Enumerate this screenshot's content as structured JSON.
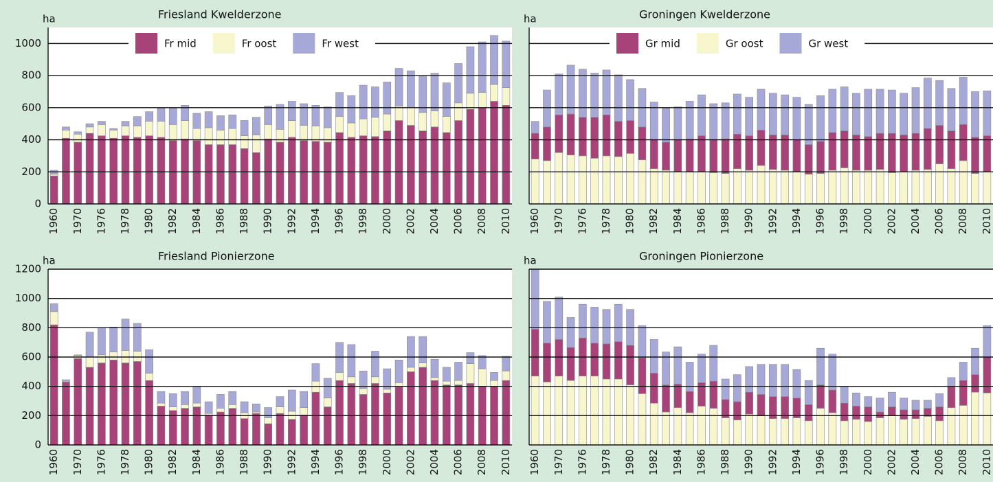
{
  "chart_data": [
    {
      "type": "bar",
      "stacked": true,
      "title": "Friesland Kwelderzone",
      "ylabel": "ha",
      "categories": [
        1960,
        null,
        1970,
        null,
        1976,
        null,
        1978,
        null,
        1980,
        null,
        1982,
        null,
        1984,
        null,
        1986,
        null,
        1988,
        null,
        1990,
        null,
        1992,
        null,
        1994,
        null,
        1996,
        null,
        1998,
        null,
        2000,
        null,
        2002,
        null,
        2004,
        null,
        2006,
        null,
        2008,
        null,
        2010
      ],
      "series": [
        {
          "name": "Fr mid",
          "color": "#a8437a",
          "values": [
            175,
            410,
            385,
            440,
            425,
            410,
            425,
            415,
            425,
            415,
            395,
            405,
            395,
            370,
            370,
            370,
            345,
            320,
            405,
            385,
            415,
            395,
            390,
            385,
            445,
            415,
            425,
            420,
            455,
            520,
            490,
            455,
            480,
            445,
            520,
            590,
            600,
            640,
            615
          ]
        },
        {
          "name": "Fr oost",
          "color": "#f8f6cc",
          "values": [
            10,
            50,
            50,
            40,
            70,
            50,
            60,
            70,
            90,
            100,
            100,
            115,
            75,
            105,
            90,
            100,
            80,
            110,
            90,
            80,
            105,
            95,
            95,
            90,
            100,
            90,
            105,
            120,
            105,
            90,
            110,
            115,
            100,
            100,
            110,
            100,
            95,
            105,
            110
          ]
        },
        {
          "name": "Fr west",
          "color": "#a6a8d8",
          "values": [
            25,
            20,
            15,
            20,
            20,
            10,
            30,
            60,
            60,
            80,
            100,
            95,
            95,
            100,
            90,
            85,
            95,
            110,
            115,
            155,
            120,
            135,
            130,
            130,
            150,
            170,
            210,
            190,
            200,
            235,
            230,
            230,
            235,
            210,
            245,
            290,
            315,
            305,
            290
          ]
        }
      ],
      "ylim": [
        0,
        1100
      ],
      "yticks": [
        0,
        200,
        400,
        600,
        800,
        1000
      ],
      "grid": true,
      "legend": "top"
    },
    {
      "type": "bar",
      "stacked": true,
      "title": "Groningen Kwelderzone",
      "ylabel": "ha",
      "categories": [
        1960,
        null,
        1970,
        null,
        1976,
        null,
        1978,
        null,
        1980,
        null,
        1982,
        null,
        1984,
        null,
        1986,
        null,
        1988,
        null,
        1990,
        null,
        1992,
        null,
        1994,
        null,
        1996,
        null,
        1998,
        null,
        2000,
        null,
        2002,
        null,
        2004,
        null,
        2006,
        null,
        2008,
        null,
        2010
      ],
      "series": [
        {
          "name": "Gr mid",
          "color": "#a8437a",
          "values": [
            160,
            210,
            235,
            255,
            240,
            255,
            255,
            220,
            205,
            205,
            180,
            175,
            200,
            205,
            225,
            205,
            215,
            215,
            215,
            220,
            215,
            220,
            200,
            185,
            200,
            235,
            230,
            220,
            210,
            225,
            245,
            230,
            230,
            255,
            240,
            235,
            225,
            225,
            225
          ]
        },
        {
          "name": "Gr oost",
          "color": "#f8f6cc",
          "values": [
            280,
            270,
            320,
            305,
            300,
            285,
            300,
            295,
            315,
            275,
            220,
            210,
            200,
            200,
            200,
            195,
            190,
            220,
            210,
            240,
            215,
            210,
            200,
            185,
            190,
            210,
            225,
            210,
            210,
            215,
            195,
            200,
            210,
            215,
            250,
            220,
            270,
            190,
            200
          ]
        },
        {
          "name": "Gr west",
          "color": "#a6a8d8",
          "values": [
            75,
            230,
            255,
            305,
            300,
            275,
            280,
            290,
            255,
            240,
            235,
            210,
            205,
            235,
            255,
            225,
            225,
            250,
            240,
            255,
            260,
            250,
            265,
            250,
            285,
            270,
            275,
            260,
            295,
            275,
            270,
            260,
            285,
            315,
            280,
            265,
            295,
            285,
            280
          ]
        }
      ],
      "stack_order": [
        1,
        0,
        2
      ],
      "ylim": [
        0,
        1100
      ],
      "yticks": [
        0,
        200,
        400,
        600,
        800,
        1000
      ],
      "grid": true,
      "legend": "top"
    },
    {
      "type": "bar",
      "stacked": true,
      "title": "Friesland Pionierzone",
      "ylabel": "ha",
      "categories": [
        1960,
        null,
        1970,
        null,
        1976,
        null,
        1978,
        null,
        1980,
        null,
        1982,
        null,
        1984,
        null,
        1986,
        null,
        1988,
        null,
        1990,
        null,
        1992,
        null,
        1994,
        null,
        1996,
        null,
        1998,
        null,
        2000,
        null,
        2002,
        null,
        2004,
        null,
        2006,
        null,
        2008,
        null,
        2010
      ],
      "series": [
        {
          "color": "#a8437a",
          "values": [
            820,
            430,
            590,
            530,
            560,
            580,
            560,
            570,
            440,
            265,
            235,
            250,
            260,
            205,
            225,
            250,
            180,
            215,
            145,
            215,
            175,
            205,
            360,
            260,
            440,
            420,
            345,
            420,
            355,
            395,
            500,
            530,
            440,
            410,
            410,
            420,
            400,
            400,
            440
          ]
        },
        {
          "color": "#f8f6cc",
          "values": [
            90,
            5,
            20,
            70,
            55,
            55,
            85,
            70,
            50,
            20,
            25,
            25,
            25,
            10,
            25,
            25,
            40,
            10,
            40,
            45,
            55,
            50,
            75,
            60,
            55,
            45,
            40,
            45,
            25,
            30,
            30,
            30,
            20,
            25,
            30,
            135,
            120,
            40,
            65
          ]
        },
        {
          "color": "#a6a8d8",
          "values": [
            55,
            10,
            5,
            170,
            185,
            170,
            215,
            190,
            160,
            80,
            90,
            90,
            115,
            80,
            95,
            90,
            75,
            55,
            70,
            70,
            145,
            110,
            120,
            135,
            205,
            220,
            120,
            175,
            140,
            155,
            210,
            180,
            125,
            95,
            125,
            75,
            90,
            55,
            100
          ]
        }
      ],
      "ylim": [
        0,
        1200
      ],
      "yticks": [
        0,
        200,
        400,
        600,
        800,
        1000,
        1200
      ],
      "grid": true
    },
    {
      "type": "bar",
      "stacked": true,
      "title": "Groningen Pionierzone",
      "ylabel": "ha",
      "categories": [
        1960,
        null,
        1970,
        null,
        1976,
        null,
        1978,
        null,
        1980,
        null,
        1982,
        null,
        1984,
        null,
        1986,
        null,
        1988,
        null,
        1990,
        null,
        1992,
        null,
        1994,
        null,
        1996,
        null,
        1998,
        null,
        2000,
        null,
        2002,
        null,
        2004,
        null,
        2006,
        null,
        2008,
        null,
        2010
      ],
      "series": [
        {
          "color": "#f8f6cc",
          "values": [
            470,
            430,
            470,
            440,
            470,
            470,
            450,
            450,
            410,
            350,
            285,
            225,
            255,
            220,
            265,
            250,
            185,
            170,
            210,
            200,
            180,
            180,
            185,
            165,
            250,
            220,
            165,
            175,
            160,
            185,
            200,
            175,
            180,
            195,
            165,
            255,
            270,
            360,
            355
          ]
        },
        {
          "color": "#a8437a",
          "values": [
            320,
            265,
            250,
            225,
            260,
            225,
            240,
            255,
            270,
            245,
            205,
            185,
            160,
            145,
            160,
            185,
            125,
            125,
            150,
            145,
            150,
            150,
            135,
            110,
            160,
            155,
            120,
            90,
            100,
            40,
            60,
            65,
            60,
            55,
            95,
            145,
            170,
            120,
            245
          ]
        },
        {
          "color": "#a6a8d8",
          "values": [
            460,
            285,
            290,
            205,
            230,
            245,
            235,
            255,
            245,
            220,
            230,
            225,
            255,
            200,
            195,
            245,
            140,
            185,
            175,
            205,
            220,
            220,
            195,
            165,
            250,
            245,
            115,
            90,
            70,
            95,
            100,
            80,
            65,
            55,
            90,
            60,
            125,
            180,
            215
          ]
        }
      ],
      "ylim": [
        0,
        1200
      ],
      "yticks": [
        0,
        200,
        400,
        600,
        800,
        1000,
        1200
      ],
      "grid": true
    }
  ]
}
